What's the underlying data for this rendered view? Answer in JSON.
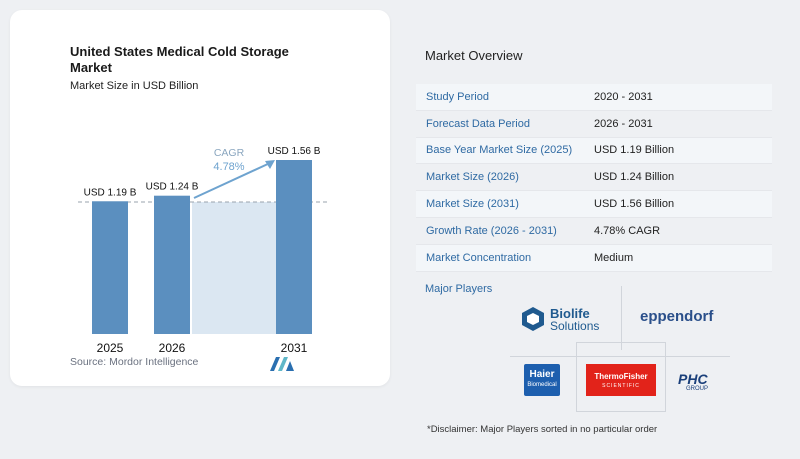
{
  "chart_title": "United States Medical Cold Storage Market",
  "chart_subtitle": "Market Size in USD Billion",
  "source": "Source: Mordor Intelligence",
  "colors": {
    "bar": "#5b8fbf",
    "cagr_bg": "#dbe7f2",
    "cagr_text": "#6ea3cf",
    "label": "#2f6aa3",
    "row_alt": "#f3f6f9"
  },
  "chart_data": {
    "type": "bar",
    "title": "United States Medical Cold Storage Market",
    "subtitle": "Market Size in USD Billion",
    "categories": [
      "2025",
      "2026",
      "2031"
    ],
    "values": [
      1.19,
      1.24,
      1.56
    ],
    "data_labels": [
      "USD 1.19 B",
      "USD 1.24 B",
      "USD 1.56 B"
    ],
    "ylim": [
      0,
      1.56
    ],
    "annotation": {
      "label": "CAGR",
      "value": "4.78%"
    },
    "grid": false
  },
  "overview": {
    "title": "Market Overview",
    "rows": [
      {
        "label": "Study Period",
        "value": "2020 - 2031"
      },
      {
        "label": "Forecast Data Period",
        "value": "2026 - 2031"
      },
      {
        "label": "Base Year Market Size (2025)",
        "value": "USD 1.19 Billion"
      },
      {
        "label": "Market Size (2026)",
        "value": "USD 1.24 Billion"
      },
      {
        "label": "Market Size (2031)",
        "value": "USD 1.56 Billion"
      },
      {
        "label": "Growth Rate (2026 - 2031)",
        "value": "4.78% CAGR"
      },
      {
        "label": "Market Concentration",
        "value": "Medium"
      }
    ]
  },
  "players": {
    "title": "Major Players",
    "logos": [
      {
        "name": "Biolife Solutions",
        "line1": "Biolife",
        "line2": "Solutions"
      },
      {
        "name": "eppendorf",
        "text": "eppendorf"
      },
      {
        "name": "Haier Biomedical",
        "line1": "Haier",
        "line2": "Biomedical"
      },
      {
        "name": "Thermo Fisher Scientific",
        "line1": "ThermoFisher",
        "line2": "SCIENTIFIC"
      },
      {
        "name": "PHC Group",
        "line1": "PHC",
        "line2": "GROUP"
      }
    ]
  },
  "disclaimer": "*Disclaimer: Major Players sorted in no particular order"
}
